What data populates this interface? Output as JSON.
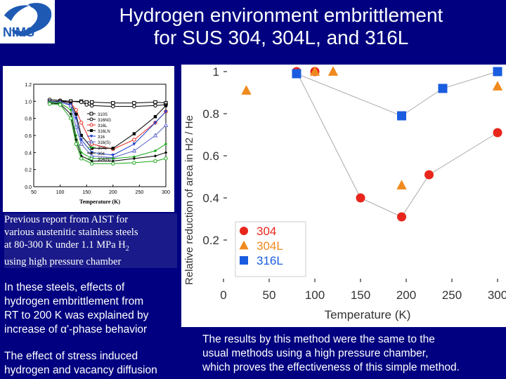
{
  "header": {
    "logo_text": "NIMS",
    "title_line1": "Hydrogen environment embrittlement",
    "title_line2": "for SUS 304, 304L, and 316L"
  },
  "left_panel": {
    "previous_report_lines": [
      "Previous report from AIST for",
      "various austenitic stainless steels",
      "at 80-300 K under 1.1 MPa H",
      "using high pressure chamber"
    ],
    "h2_subscript": "2",
    "note1_lines": [
      "In these steels, effects of",
      "hydrogen embrittlement from",
      "RT to 200 K was explained by",
      "increase of α'-phase behavior"
    ],
    "note2_lines": [
      "The effect of  stress induced",
      "hydrogen and vacancy diffusion"
    ]
  },
  "conclusion_lines": [
    "The results by this method were the same to the",
    "usual methods using a high pressure chamber,",
    "which proves the effectiveness of this simple method."
  ],
  "chart_data": [
    {
      "type": "scatter",
      "xlabel": "Temperature (K)",
      "ylabel": "Relative reduction of area in H2 / He",
      "xlim": [
        0,
        300
      ],
      "ylim": [
        0,
        1
      ],
      "xticks": [
        0,
        50,
        100,
        150,
        200,
        250,
        300
      ],
      "yticks": [
        0.2,
        0.4,
        0.6,
        0.8,
        1
      ],
      "legend_position": "bottom-left",
      "series": [
        {
          "name": "304",
          "marker": "circle",
          "color": "#e8261c",
          "line": false,
          "x": [
            80,
            100,
            150,
            195,
            225,
            300
          ],
          "y": [
            1.0,
            1.0,
            0.4,
            0.31,
            0.51,
            0.71
          ]
        },
        {
          "name": "304L",
          "marker": "triangle",
          "color": "#f08a1e",
          "line": false,
          "x": [
            25,
            100,
            120,
            195,
            300
          ],
          "y": [
            0.91,
            1.0,
            1.0,
            0.46,
            0.93
          ]
        },
        {
          "name": "316L",
          "marker": "square",
          "color": "#1a5ce0",
          "line": true,
          "x": [
            80,
            195,
            240,
            300
          ],
          "y": [
            0.99,
            0.79,
            0.92,
            1.0
          ]
        }
      ],
      "trend_line_304": {
        "x": [
          80,
          150,
          195,
          225,
          300
        ],
        "y": [
          1.0,
          0.4,
          0.31,
          0.51,
          0.71
        ]
      }
    },
    {
      "type": "line",
      "xlabel": "Temperature (K)",
      "xlim": [
        50,
        300
      ],
      "ylim": [
        0,
        1.2
      ],
      "xticks": [
        50,
        100,
        150,
        200,
        250,
        300
      ],
      "yticks": [
        0.0,
        0.2,
        0.4,
        0.6,
        0.8,
        1.0,
        1.2
      ],
      "legend_position": "right",
      "series": [
        {
          "name": "310S",
          "color": "#000000",
          "marker": "square-open",
          "x": [
            80,
            100,
            120,
            140,
            150,
            160,
            200,
            240,
            280,
            300
          ],
          "y": [
            1.0,
            1.0,
            1.0,
            1.0,
            0.99,
            0.99,
            0.98,
            0.98,
            0.99,
            0.98
          ]
        },
        {
          "name": "316NG",
          "color": "#000000",
          "marker": "circle-open",
          "x": [
            80,
            100,
            120,
            140,
            150,
            160,
            200,
            240,
            280,
            300
          ],
          "y": [
            1.02,
            1.01,
            1.0,
            0.99,
            0.96,
            0.95,
            0.94,
            0.94,
            0.95,
            0.96
          ]
        },
        {
          "name": "316L",
          "color": "#e8261c",
          "marker": "circle-open",
          "x": [
            80,
            100,
            120,
            130,
            140,
            160,
            200,
            240,
            280,
            300
          ],
          "y": [
            1.0,
            1.0,
            0.98,
            0.9,
            0.75,
            0.5,
            0.44,
            0.55,
            0.75,
            0.88
          ]
        },
        {
          "name": "316LN",
          "color": "#000000",
          "marker": "square",
          "x": [
            80,
            100,
            120,
            130,
            140,
            160,
            200,
            240,
            280,
            300
          ],
          "y": [
            1.0,
            1.0,
            0.98,
            0.85,
            0.6,
            0.45,
            0.45,
            0.62,
            0.82,
            0.95
          ]
        },
        {
          "name": "316",
          "color": "#1a3cc8",
          "marker": "triangle-down",
          "x": [
            80,
            100,
            120,
            130,
            140,
            160,
            200,
            240,
            280,
            300
          ],
          "y": [
            0.99,
            0.99,
            0.96,
            0.8,
            0.55,
            0.4,
            0.37,
            0.5,
            0.75,
            0.88
          ]
        },
        {
          "name": "316(S)",
          "color": "#5a64c8",
          "marker": "triangle-open",
          "x": [
            80,
            100,
            120,
            130,
            140,
            160,
            200,
            240,
            280,
            300
          ],
          "y": [
            1.0,
            0.99,
            0.95,
            0.7,
            0.5,
            0.36,
            0.34,
            0.42,
            0.6,
            0.72
          ]
        },
        {
          "name": "304L",
          "color": "#18a818",
          "marker": "diamond",
          "x": [
            80,
            100,
            120,
            130,
            140,
            160,
            200,
            240,
            280,
            300
          ],
          "y": [
            0.99,
            0.98,
            0.9,
            0.6,
            0.4,
            0.33,
            0.33,
            0.35,
            0.42,
            0.5
          ]
        },
        {
          "name": "304",
          "color": "#000000",
          "marker": "diamond",
          "x": [
            80,
            100,
            120,
            130,
            140,
            160,
            200,
            240,
            280,
            300
          ],
          "y": [
            0.98,
            0.97,
            0.85,
            0.55,
            0.36,
            0.3,
            0.3,
            0.33,
            0.36,
            0.4
          ]
        },
        {
          "name": "304(N)",
          "color": "#18a818",
          "marker": "circle-open",
          "x": [
            80,
            100,
            120,
            130,
            140,
            160,
            200,
            240,
            280,
            300
          ],
          "y": [
            0.97,
            0.96,
            0.8,
            0.5,
            0.33,
            0.27,
            0.27,
            0.28,
            0.3,
            0.33
          ]
        }
      ]
    }
  ],
  "colors": {
    "background": "#000080",
    "logo_blue": "#1e5ab4",
    "text": "#ffffff"
  }
}
